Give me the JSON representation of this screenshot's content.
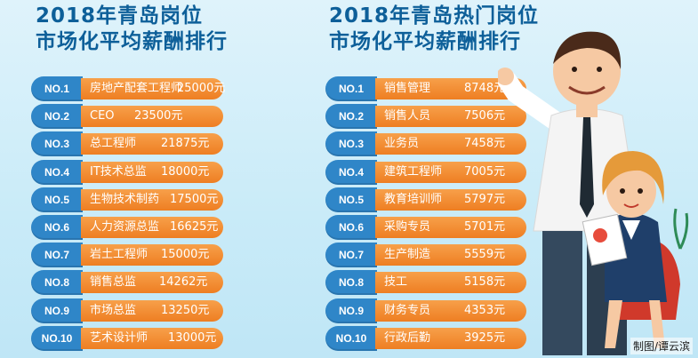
{
  "left": {
    "title_line1": "2018年青岛岗位",
    "title_line2": "市场化平均薪酬排行",
    "items": [
      {
        "rank": "NO.1",
        "job": "房地产配套工程师",
        "salary": "25000元"
      },
      {
        "rank": "NO.2",
        "job": "CEO",
        "salary": "23500元"
      },
      {
        "rank": "NO.3",
        "job": "总工程师",
        "salary": "21875元"
      },
      {
        "rank": "NO.4",
        "job": "IT技术总监",
        "salary": "18000元"
      },
      {
        "rank": "NO.5",
        "job": "生物技术制药",
        "salary": "17500元"
      },
      {
        "rank": "NO.6",
        "job": "人力资源总监",
        "salary": "16625元"
      },
      {
        "rank": "NO.7",
        "job": "岩土工程师",
        "salary": "15000元"
      },
      {
        "rank": "NO.8",
        "job": "销售总监",
        "salary": "14262元"
      },
      {
        "rank": "NO.9",
        "job": "市场总监",
        "salary": "13250元"
      },
      {
        "rank": "NO.10",
        "job": "艺术设计师",
        "salary": "13000元"
      }
    ]
  },
  "right": {
    "title_line1": "2018年青岛热门岗位",
    "title_line2": "市场化平均薪酬排行",
    "items": [
      {
        "rank": "NO.1",
        "job": "销售管理",
        "salary": "8748元"
      },
      {
        "rank": "NO.2",
        "job": "销售人员",
        "salary": "7506元"
      },
      {
        "rank": "NO.3",
        "job": "业务员",
        "salary": "7458元"
      },
      {
        "rank": "NO.4",
        "job": "建筑工程师",
        "salary": "7005元"
      },
      {
        "rank": "NO.5",
        "job": "教育培训师",
        "salary": "5797元"
      },
      {
        "rank": "NO.6",
        "job": "采购专员",
        "salary": "5701元"
      },
      {
        "rank": "NO.7",
        "job": "生产制造",
        "salary": "5559元"
      },
      {
        "rank": "NO.8",
        "job": "技工",
        "salary": "5158元"
      },
      {
        "rank": "NO.9",
        "job": "财务专员",
        "salary": "4353元"
      },
      {
        "rank": "NO.10",
        "job": "行政后勤",
        "salary": "3925元"
      }
    ]
  },
  "credit": "制图/谭云滨",
  "colors": {
    "badge": "#2f86c8",
    "pill": "#ee7e22",
    "title": "#0d5f99"
  }
}
